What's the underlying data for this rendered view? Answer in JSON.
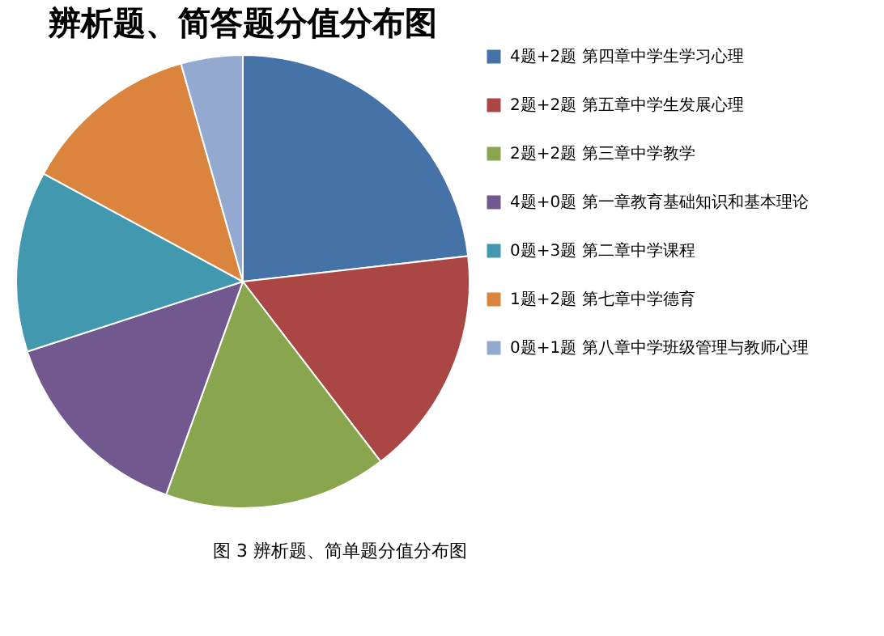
{
  "chart_data": {
    "type": "pie",
    "title": "辨析题、简答题分值分布图",
    "categories": [
      "4题+2题 第四章中学生学习心理",
      "2题+2题 第五章中学生发展心理",
      "2题+2题 第三章中学教学",
      "4题+0题 第一章教育基础知识和基本理论",
      "0题+3题 第二章中学课程",
      "1题+2题 第七章中学德育",
      "0题+1题 第八章中学班级管理与教师心理"
    ],
    "values": [
      23.2,
      16.4,
      15.9,
      14.5,
      12.9,
      12.7,
      4.4
    ],
    "colors": [
      "#4572a7",
      "#aa4643",
      "#89a54e",
      "#71588f",
      "#4198af",
      "#db843d",
      "#93a9cf"
    ],
    "legend": "right",
    "annotations": [
      "图 3 辨析题、简单题分值分布图"
    ]
  }
}
